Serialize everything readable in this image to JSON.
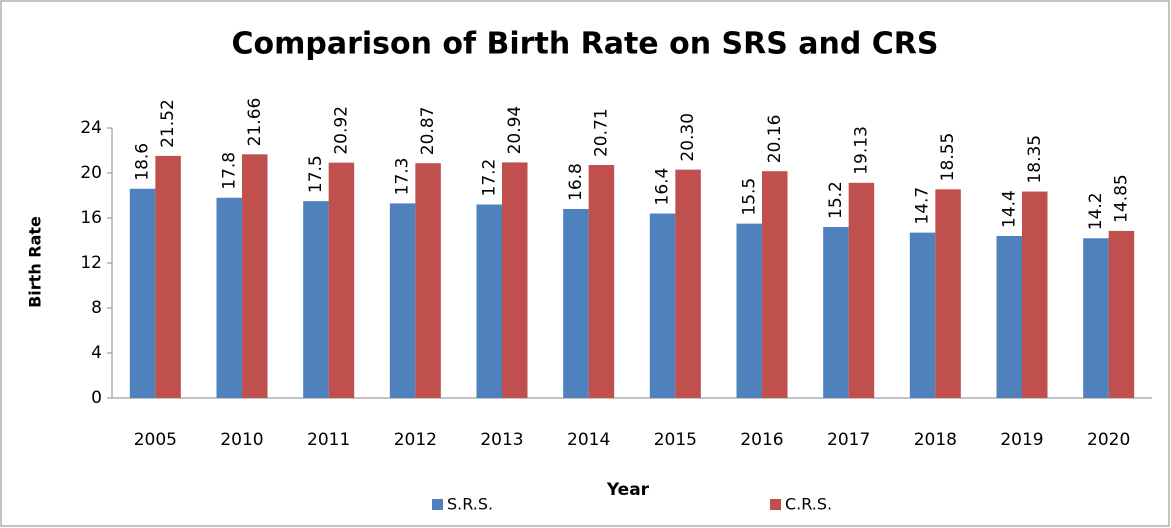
{
  "chart_data": {
    "type": "bar",
    "title": "Comparison of Birth Rate on SRS and CRS",
    "x_label": "Year",
    "y_label": "Birth Rate",
    "categories": [
      "2005",
      "2010",
      "2011",
      "2012",
      "2013",
      "2014",
      "2015",
      "2016",
      "2017",
      "2018",
      "2019",
      "2020"
    ],
    "series": [
      {
        "name": "S.R.S.",
        "color": "#4f81bd",
        "values": [
          18.6,
          17.8,
          17.5,
          17.3,
          17.2,
          16.8,
          16.4,
          15.5,
          15.2,
          14.7,
          14.4,
          14.2
        ]
      },
      {
        "name": "C.R.S.",
        "color": "#c0504d",
        "values": [
          21.52,
          21.66,
          20.92,
          20.87,
          20.94,
          20.71,
          20.3,
          20.16,
          19.13,
          18.55,
          18.35,
          14.85
        ],
        "value_labels": [
          "21.52",
          "21.66",
          "20.92",
          "20.87",
          "20.94",
          "20.71",
          "20.30",
          "20.16",
          "19.13",
          "18.55",
          "18.35",
          "14.85"
        ]
      }
    ],
    "ylim": [
      0,
      24
    ],
    "yticks": [
      0,
      4,
      8,
      12,
      16,
      20,
      24
    ],
    "grid": false,
    "legend": "bottom"
  }
}
